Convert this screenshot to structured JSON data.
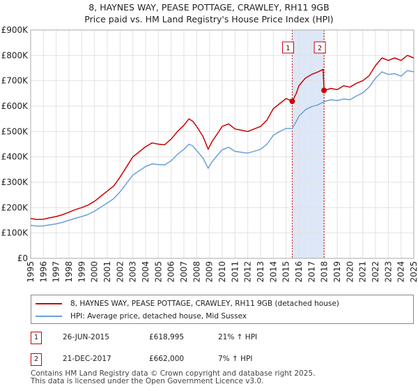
{
  "title_line1": "8, HAYNES WAY, PEASE POTTAGE, CRAWLEY, RH11 9GB",
  "title_line2": "Price paid vs. HM Land Registry's House Price Index (HPI)",
  "legend": {
    "property": "8, HAYNES WAY, PEASE POTTAGE, CRAWLEY, RH11 9GB (detached house)",
    "hpi": "HPI: Average price, detached house, Mid Sussex"
  },
  "sales": [
    {
      "num": "1",
      "date": "26-JUN-2015",
      "price": "£618,995",
      "hpi": "21% ↑ HPI"
    },
    {
      "num": "2",
      "date": "21-DEC-2017",
      "price": "£662,000",
      "hpi": "7% ↑ HPI"
    }
  ],
  "footer": {
    "line1": "Contains HM Land Registry data © Crown copyright and database right 2025.",
    "line2": "This data is licensed under the Open Government Licence v3.0."
  },
  "colors": {
    "property": "#cc0000",
    "hpi": "#6a9fd8",
    "shade": "#dde7f7",
    "grid": "#e2e2e2"
  },
  "chart_data": {
    "type": "line",
    "title": "8, HAYNES WAY, PEASE POTTAGE, CRAWLEY, RH11 9GB — Price paid vs. HM Land Registry's House Price Index (HPI)",
    "xlabel": "",
    "ylabel": "",
    "xlim": [
      1995,
      2025
    ],
    "ylim": [
      0,
      900000
    ],
    "y_ticks": [
      0,
      100000,
      200000,
      300000,
      400000,
      500000,
      600000,
      700000,
      800000,
      900000
    ],
    "y_tick_labels": [
      "£0",
      "£100K",
      "£200K",
      "£300K",
      "£400K",
      "£500K",
      "£600K",
      "£700K",
      "£800K",
      "£900K"
    ],
    "x_ticks": [
      1995,
      1996,
      1997,
      1998,
      1999,
      2000,
      2001,
      2002,
      2003,
      2004,
      2005,
      2006,
      2007,
      2008,
      2009,
      2010,
      2011,
      2012,
      2013,
      2014,
      2015,
      2016,
      2017,
      2018,
      2019,
      2020,
      2021,
      2022,
      2023,
      2024,
      2025
    ],
    "x_tick_labels": [
      "1995",
      "1996",
      "1997",
      "1998",
      "1999",
      "2000",
      "2001",
      "2002",
      "2003",
      "2004",
      "2005",
      "2006",
      "2007",
      "2008",
      "2009",
      "2010",
      "2011",
      "2012",
      "2013",
      "2014",
      "2015",
      "2016",
      "2017",
      "2018",
      "2019",
      "2020",
      "2021",
      "2022",
      "2023",
      "2024",
      "2025"
    ],
    "grid": true,
    "shaded_band": [
      2015.48,
      2017.97
    ],
    "series": [
      {
        "name": "8, HAYNES WAY, PEASE POTTAGE, CRAWLEY, RH11 9GB (detached house)",
        "color": "#cc0000",
        "x": [
          1995,
          1995.5,
          1996,
          1996.5,
          1997,
          1997.5,
          1998,
          1998.5,
          1999,
          1999.5,
          2000,
          2000.5,
          2001,
          2001.5,
          2002,
          2002.5,
          2003,
          2003.5,
          2004,
          2004.5,
          2005,
          2005.5,
          2006,
          2006.5,
          2007,
          2007.4,
          2007.7,
          2008,
          2008.5,
          2008.9,
          2009.2,
          2009.6,
          2010,
          2010.5,
          2011,
          2011.5,
          2012,
          2012.5,
          2013,
          2013.5,
          2014,
          2014.5,
          2015,
          2015.48,
          2015.8,
          2016,
          2016.5,
          2017,
          2017.5,
          2017.9,
          2017.97,
          2018.2,
          2018.5,
          2019,
          2019.5,
          2020,
          2020.5,
          2021,
          2021.5,
          2022,
          2022.5,
          2023,
          2023.5,
          2024,
          2024.5,
          2025
        ],
        "y": [
          157000,
          153000,
          154000,
          160000,
          165000,
          172000,
          182000,
          192000,
          200000,
          210000,
          225000,
          245000,
          265000,
          285000,
          320000,
          360000,
          400000,
          420000,
          440000,
          455000,
          450000,
          448000,
          470000,
          500000,
          525000,
          550000,
          540000,
          520000,
          480000,
          430000,
          460000,
          490000,
          520000,
          530000,
          510000,
          505000,
          500000,
          510000,
          520000,
          545000,
          590000,
          610000,
          630000,
          618995,
          650000,
          680000,
          710000,
          725000,
          735000,
          745000,
          662000,
          665000,
          670000,
          665000,
          680000,
          675000,
          690000,
          700000,
          720000,
          760000,
          790000,
          780000,
          790000,
          780000,
          800000,
          790000
        ]
      },
      {
        "name": "HPI: Average price, detached house, Mid Sussex",
        "color": "#6a9fd8",
        "x": [
          1995,
          1995.5,
          1996,
          1996.5,
          1997,
          1997.5,
          1998,
          1998.5,
          1999,
          1999.5,
          2000,
          2000.5,
          2001,
          2001.5,
          2002,
          2002.5,
          2003,
          2003.5,
          2004,
          2004.5,
          2005,
          2005.5,
          2006,
          2006.5,
          2007,
          2007.4,
          2007.7,
          2008,
          2008.5,
          2008.9,
          2009.2,
          2009.6,
          2010,
          2010.5,
          2011,
          2011.5,
          2012,
          2012.5,
          2013,
          2013.5,
          2014,
          2014.5,
          2015,
          2015.48,
          2015.8,
          2016,
          2016.5,
          2017,
          2017.5,
          2017.97,
          2018.5,
          2019,
          2019.5,
          2020,
          2020.5,
          2021,
          2021.5,
          2022,
          2022.5,
          2023,
          2023.5,
          2024,
          2024.5,
          2025
        ],
        "y": [
          130000,
          127000,
          128000,
          132000,
          136000,
          142000,
          150000,
          158000,
          165000,
          173000,
          186000,
          202000,
          218000,
          235000,
          262000,
          295000,
          328000,
          345000,
          362000,
          372000,
          370000,
          368000,
          385000,
          410000,
          430000,
          450000,
          443000,
          425000,
          395000,
          355000,
          380000,
          405000,
          428000,
          438000,
          422000,
          418000,
          415000,
          422000,
          430000,
          450000,
          485000,
          500000,
          512000,
          512000,
          540000,
          560000,
          585000,
          598000,
          605000,
          618000,
          625000,
          622000,
          628000,
          625000,
          640000,
          652000,
          675000,
          710000,
          735000,
          725000,
          728000,
          718000,
          740000,
          735000
        ]
      }
    ],
    "sale_markers": [
      {
        "label": "1",
        "x": 2015.48,
        "y": 618995
      },
      {
        "label": "2",
        "x": 2017.97,
        "y": 662000
      }
    ]
  }
}
